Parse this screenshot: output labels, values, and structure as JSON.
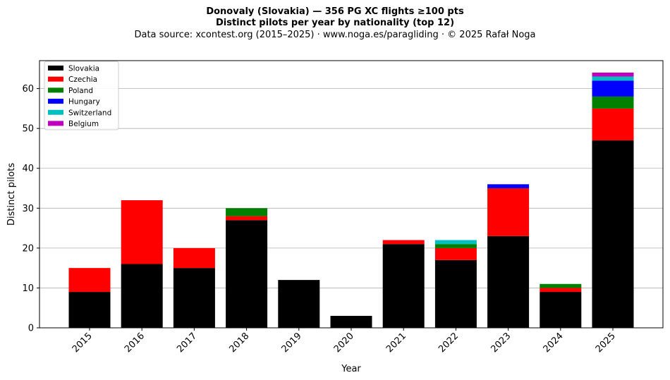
{
  "chart_data": {
    "type": "bar",
    "stacked": true,
    "title": "Donovaly (Slovakia)  —  356 PG XC flights ≥100 pts",
    "subtitle": "Distinct pilots per year by nationality (top 12)",
    "source_line": "Data source: xcontest.org (2015–2025)  ·  www.noga.es/paragliding  ·  © 2025 Rafał Noga",
    "xlabel": "Year",
    "ylabel": "Distinct pilots",
    "ylim": [
      0,
      67
    ],
    "yticks": [
      0,
      10,
      20,
      30,
      40,
      50,
      60
    ],
    "grid": "y",
    "legend_position": "top-left",
    "categories": [
      "2015",
      "2016",
      "2017",
      "2018",
      "2019",
      "2020",
      "2021",
      "2022",
      "2023",
      "2024",
      "2025"
    ],
    "series": [
      {
        "name": "Slovakia",
        "color": "#000000",
        "values": [
          9,
          16,
          15,
          27,
          12,
          3,
          21,
          17,
          23,
          9,
          47
        ]
      },
      {
        "name": "Czechia",
        "color": "#ff0000",
        "values": [
          6,
          16,
          5,
          1,
          0,
          0,
          1,
          3,
          12,
          1,
          8
        ]
      },
      {
        "name": "Poland",
        "color": "#008000",
        "values": [
          0,
          0,
          0,
          2,
          0,
          0,
          0,
          1,
          0,
          1,
          3
        ]
      },
      {
        "name": "Hungary",
        "color": "#0000ff",
        "values": [
          0,
          0,
          0,
          0,
          0,
          0,
          0,
          0,
          1,
          0,
          4
        ]
      },
      {
        "name": "Switzerland",
        "color": "#00bfbf",
        "values": [
          0,
          0,
          0,
          0,
          0,
          0,
          0,
          1,
          0,
          0,
          1
        ]
      },
      {
        "name": "Belgium",
        "color": "#bf00bf",
        "values": [
          0,
          0,
          0,
          0,
          0,
          0,
          0,
          0,
          0,
          0,
          1
        ]
      }
    ]
  }
}
